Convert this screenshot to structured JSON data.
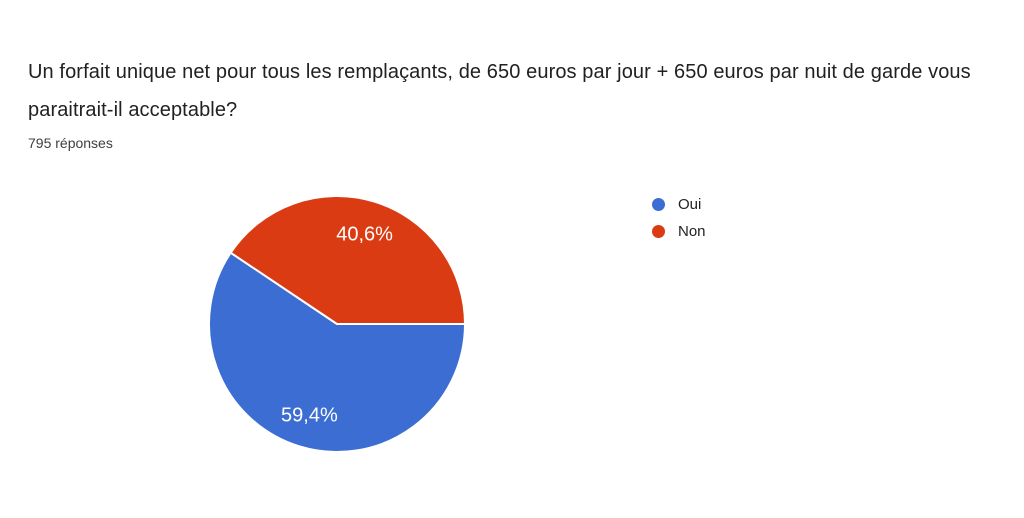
{
  "question": {
    "title": "Un forfait unique net pour tous les remplaçants, de 650 euros par jour + 650 euros par nuit de garde vous paraitrait-il acceptable?",
    "responses_count": "795 réponses"
  },
  "legend": {
    "position": "right",
    "items": [
      {
        "label": "Oui",
        "color": "#3B6DD3"
      },
      {
        "label": "Non",
        "color": "#DB3B13"
      }
    ]
  },
  "chart_data": {
    "type": "pie",
    "title": "Un forfait unique net pour tous les remplaçants, de 650 euros par jour + 650 euros par nuit de garde vous paraitrait-il acceptable?",
    "subtitle": "795 réponses",
    "categories": [
      "Oui",
      "Non"
    ],
    "values": [
      59.4,
      40.6
    ],
    "value_labels": [
      "59,4%",
      "40,6%"
    ],
    "colors": [
      "#3B6DD3",
      "#DB3B13"
    ],
    "slice_border_color": "#ffffff",
    "label_text_color": "#ffffff",
    "legend_position": "right",
    "start_angle": "east",
    "direction": "clockwise"
  },
  "colors": {
    "background": "#ffffff",
    "title_text": "#212121",
    "subtitle_text": "#3c4043"
  }
}
